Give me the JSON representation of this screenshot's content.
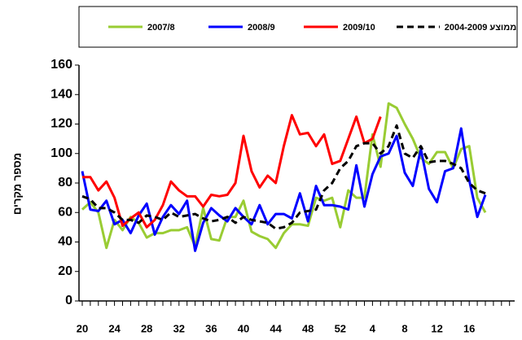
{
  "chart_data": {
    "type": "line",
    "y_label": "מספר מקרים",
    "categories": [
      "20",
      null,
      null,
      null,
      "24",
      null,
      null,
      null,
      "28",
      null,
      null,
      null,
      "32",
      null,
      null,
      null,
      "36",
      null,
      null,
      null,
      "40",
      null,
      null,
      null,
      "44",
      null,
      null,
      null,
      "48",
      null,
      null,
      null,
      "52",
      null,
      null,
      null,
      "4",
      null,
      null,
      null,
      "8",
      null,
      null,
      null,
      "12",
      null,
      null,
      null,
      "16",
      null,
      null,
      null,
      null,
      null
    ],
    "series": [
      {
        "name": "2007/8",
        "color": "#99cc33",
        "dashed": false,
        "values": [
          62,
          67,
          60,
          36,
          55,
          48,
          57,
          53,
          43,
          46,
          46,
          48,
          48,
          50,
          37,
          63,
          42,
          41,
          57,
          57,
          68,
          47,
          44,
          42,
          36,
          46,
          52,
          52,
          51,
          70,
          68,
          70,
          50,
          75,
          70,
          70,
          113,
          91,
          134,
          131,
          120,
          110,
          97,
          93,
          101,
          101,
          90,
          103,
          105,
          70,
          60,
          null,
          null,
          null
        ]
      },
      {
        "name": "2008/9",
        "color": "#0000ff",
        "dashed": false,
        "values": [
          88,
          62,
          61,
          68,
          52,
          55,
          46,
          58,
          66,
          45,
          57,
          65,
          59,
          68,
          34,
          53,
          63,
          58,
          54,
          63,
          57,
          52,
          65,
          52,
          59,
          59,
          56,
          73,
          54,
          78,
          65,
          65,
          64,
          62,
          92,
          64,
          86,
          98,
          100,
          112,
          87,
          78,
          103,
          76,
          67,
          88,
          90,
          117,
          82,
          57,
          72,
          null,
          null,
          null
        ]
      },
      {
        "name": "2009/10",
        "color": "#ff0000",
        "dashed": false,
        "values": [
          84,
          84,
          75,
          81,
          70,
          51,
          56,
          60,
          50,
          55,
          65,
          81,
          75,
          71,
          71,
          64,
          72,
          71,
          72,
          80,
          112,
          88,
          77,
          85,
          80,
          105,
          126,
          113,
          114,
          105,
          113,
          93,
          95,
          110,
          125,
          107,
          110,
          125,
          null,
          null,
          null,
          null,
          null,
          null,
          null,
          null,
          null,
          null,
          null,
          null,
          null,
          null,
          null,
          null
        ]
      },
      {
        "name": "ממוצע 2004-2009",
        "color": "#000000",
        "dashed": true,
        "values": [
          71,
          69,
          63,
          63,
          60,
          55,
          55,
          53,
          58,
          57,
          55,
          60,
          57,
          58,
          59,
          56,
          54,
          55,
          57,
          53,
          57,
          55,
          54,
          53,
          49,
          50,
          53,
          60,
          61,
          62,
          75,
          80,
          90,
          95,
          105,
          107,
          107,
          100,
          105,
          119,
          100,
          97,
          105,
          94,
          95,
          95,
          93,
          90,
          80,
          75,
          73,
          null,
          null,
          null
        ]
      }
    ],
    "ylim": [
      0,
      160
    ],
    "yticks": [
      0,
      20,
      40,
      60,
      80,
      100,
      120,
      140,
      160
    ],
    "legend": "top"
  }
}
